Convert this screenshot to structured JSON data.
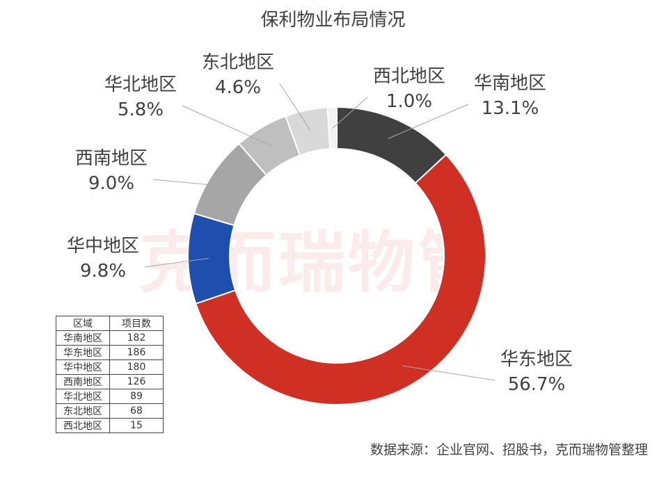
{
  "chart_data": {
    "type": "pie",
    "title": "保利物业布局情况",
    "donut": true,
    "categories": [
      "华南地区",
      "华东地区",
      "华中地区",
      "西南地区",
      "华北地区",
      "东北地区",
      "西北地区"
    ],
    "values": [
      13.1,
      56.7,
      9.8,
      9.0,
      5.8,
      4.6,
      1.0
    ],
    "value_labels": [
      "13.1%",
      "56.7%",
      "9.8%",
      "9.0%",
      "5.8%",
      "4.6%",
      "1.0%"
    ],
    "colors": [
      "#404040",
      "#d03024",
      "#1f4fae",
      "#a6a6a6",
      "#bfbfbf",
      "#d9d9d9",
      "#f2f2f2"
    ]
  },
  "watermark": "克而瑞物管",
  "table": {
    "headers": [
      "区域",
      "项目数"
    ],
    "rows": [
      [
        "华南地区",
        "182"
      ],
      [
        "华东地区",
        "186"
      ],
      [
        "华中地区",
        "180"
      ],
      [
        "西南地区",
        "126"
      ],
      [
        "华北地区",
        "89"
      ],
      [
        "东北地区",
        "68"
      ],
      [
        "西北地区",
        "15"
      ]
    ]
  },
  "source": "数据来源：企业官网、招股书，克而瑞物管整理"
}
